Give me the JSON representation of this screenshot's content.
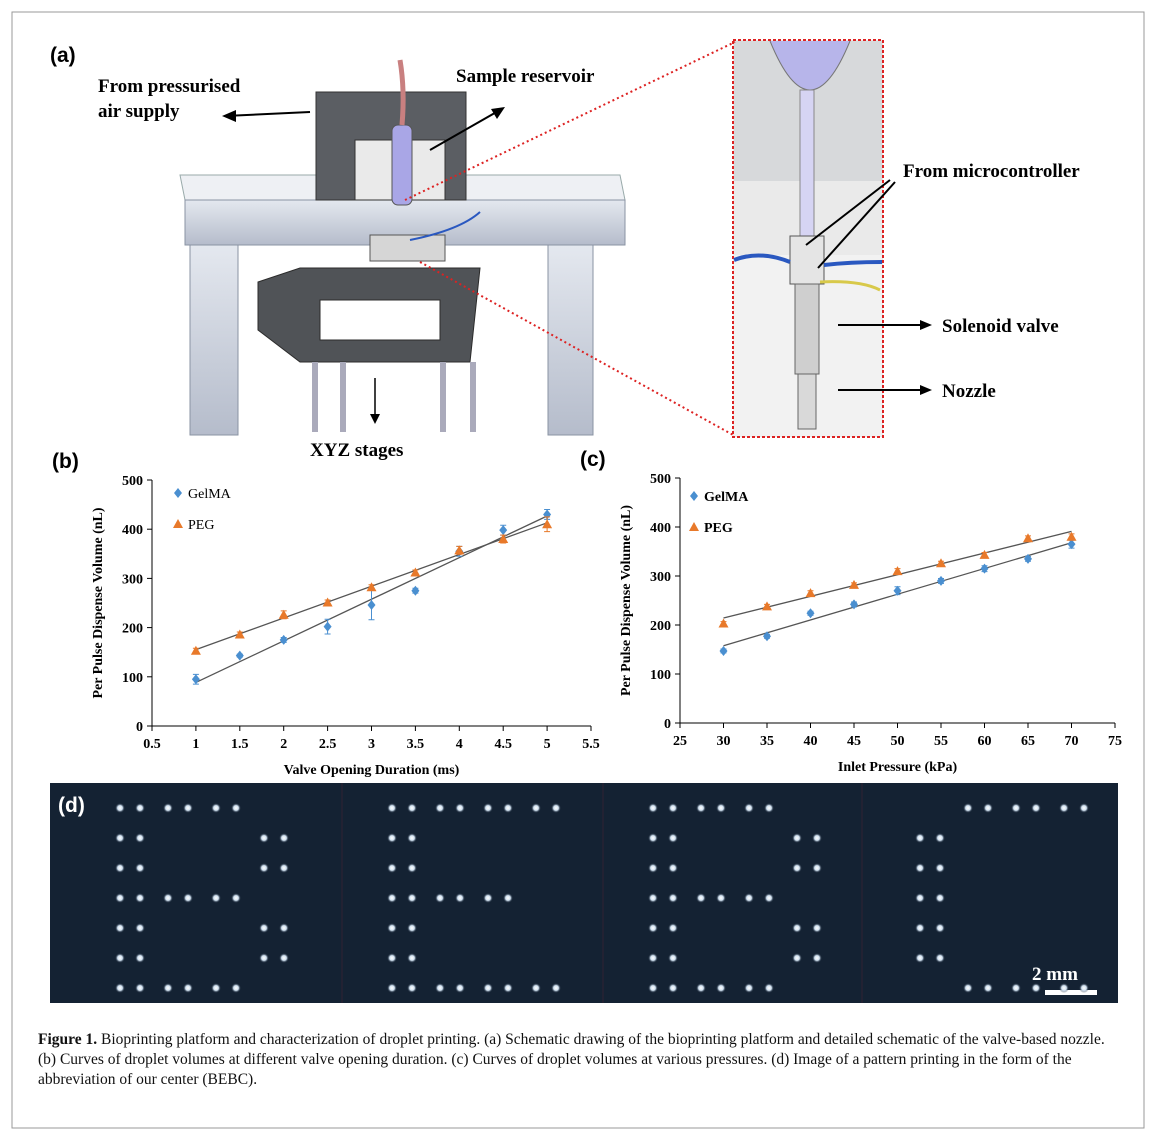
{
  "panel_a": {
    "label": "(a)",
    "air_supply_line1": "From pressurised",
    "air_supply_line2": "air supply",
    "reservoir": "Sample reservoir",
    "microcontroller": "From microcontroller",
    "solenoid": "Solenoid valve",
    "nozzle": "Nozzle",
    "stages": "XYZ stages"
  },
  "chart_data": [
    {
      "type": "scatter",
      "panel_label": "(b)",
      "x_label": "Valve Opening Duration (ms)",
      "y_label": "Per Pulse Dispense Volume (nL)",
      "x": [
        1,
        1.5,
        2,
        2.5,
        3,
        3.5,
        4,
        4.5,
        5
      ],
      "series": [
        {
          "name": "GelMA",
          "color": "#4a8fd0",
          "marker": "diamond",
          "values": [
            95,
            143,
            175,
            202,
            246,
            275,
            355,
            398,
            430
          ],
          "errors": [
            10,
            3,
            5,
            15,
            30,
            5,
            10,
            10,
            10
          ]
        },
        {
          "name": "PEG",
          "color": "#e8792a",
          "marker": "triangle",
          "values": [
            153,
            186,
            226,
            251,
            282,
            312,
            357,
            380,
            410
          ],
          "errors": [
            5,
            5,
            8,
            5,
            5,
            5,
            8,
            8,
            15
          ]
        }
      ],
      "xlim": [
        0.5,
        5.5
      ],
      "xticks": [
        0.5,
        1,
        1.5,
        2,
        2.5,
        3,
        3.5,
        4,
        4.5,
        5,
        5.5
      ],
      "ylim": [
        0,
        500
      ],
      "yticks": [
        0,
        100,
        200,
        300,
        400,
        500
      ],
      "trendline": true
    },
    {
      "type": "scatter",
      "panel_label": "(c)",
      "x_label": "Inlet Pressure (kPa)",
      "y_label": "Per Pulse Dispense Volume (nL)",
      "x": [
        30,
        35,
        40,
        45,
        50,
        55,
        60,
        65,
        70
      ],
      "series": [
        {
          "name": "GelMA",
          "color": "#4a8fd0",
          "marker": "diamond",
          "values": [
            147,
            177,
            224,
            242,
            270,
            290,
            315,
            335,
            365
          ],
          "errors": [
            4,
            4,
            4,
            5,
            8,
            5,
            6,
            5,
            8
          ]
        },
        {
          "name": "PEG",
          "color": "#e8792a",
          "marker": "triangle",
          "values": [
            203,
            238,
            265,
            282,
            310,
            326,
            343,
            377,
            380
          ],
          "errors": [
            4,
            4,
            5,
            4,
            5,
            4,
            5,
            5,
            6
          ]
        }
      ],
      "xlim": [
        25,
        75
      ],
      "xticks": [
        25,
        30,
        35,
        40,
        45,
        50,
        55,
        60,
        65,
        70,
        75
      ],
      "ylim": [
        0,
        500
      ],
      "yticks": [
        0,
        100,
        200,
        300,
        400,
        500
      ],
      "trendline": true
    }
  ],
  "panel_d": {
    "label": "(d)",
    "scale_bar": "2 mm"
  },
  "caption": {
    "label": "Figure 1.",
    "text": "Bioprinting platform and characterization of droplet printing. (a) Schematic drawing of the bioprinting platform and detailed schematic of the valve-based nozzle. (b) Curves of droplet volumes at different valve opening duration. (c) Curves of droplet volumes at various pressures. (d) Image of a pattern printing in the form of the abbreviation of our center (BEBC)."
  }
}
